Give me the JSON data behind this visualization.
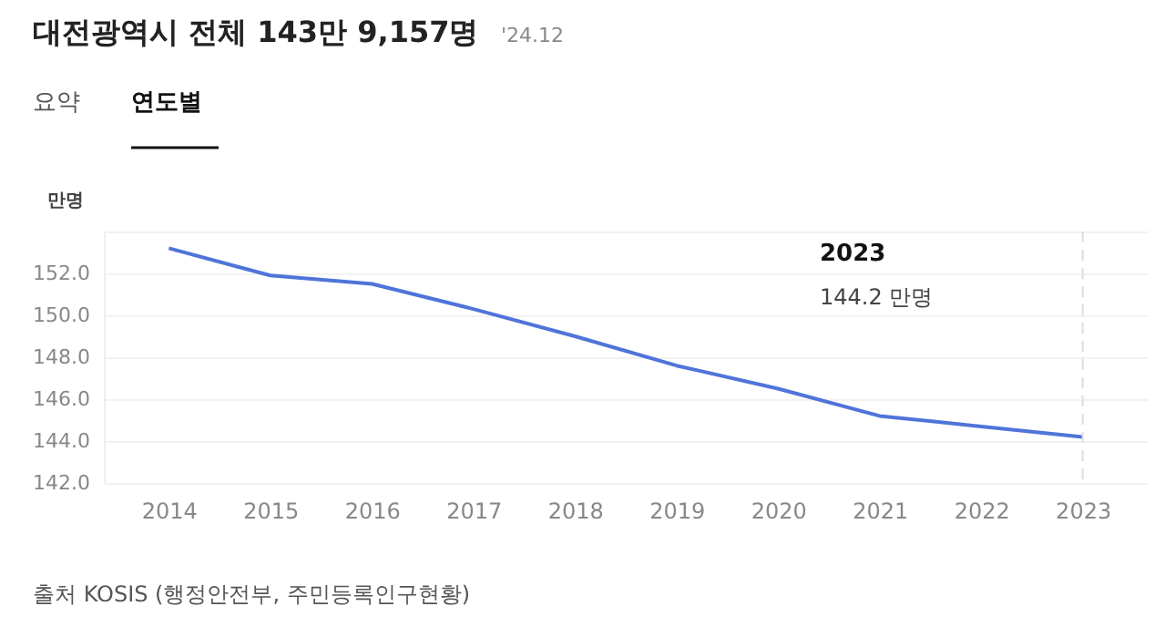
{
  "chart_data": {
    "type": "line",
    "title": "대전광역시 전체 143만 9,157명",
    "ylabel": "만명",
    "categories": [
      "2014",
      "2015",
      "2016",
      "2017",
      "2018",
      "2019",
      "2020",
      "2021",
      "2022",
      "2023"
    ],
    "series": [
      {
        "color": "#4f74d9",
        "values": [
          153.2,
          151.9,
          151.5,
          150.3,
          149.0,
          147.6,
          146.5,
          145.2,
          144.7,
          144.2
        ]
      }
    ],
    "ylim": [
      142,
      154
    ],
    "yticks": [
      {
        "value": 142,
        "label": "142.0"
      },
      {
        "value": 144,
        "label": "144.0"
      },
      {
        "value": 146,
        "label": "146.0"
      },
      {
        "value": 148,
        "label": "148.0"
      },
      {
        "value": 150,
        "label": "150.0"
      },
      {
        "value": 152,
        "label": "152.0"
      },
      {
        "value": 154,
        "label": null
      }
    ],
    "grid": "y",
    "marker": "none",
    "line_style": "solid",
    "ref_lines": [
      {
        "axis": "x",
        "value": "2023",
        "line_style": "dashed",
        "color": "#dddddd"
      }
    ],
    "annotations": [
      "'24.12",
      "요약",
      "연도별",
      "출처 KOSIS (행정안전부, 주민등록인구현황)",
      "2023",
      "144.2 만명"
    ]
  }
}
